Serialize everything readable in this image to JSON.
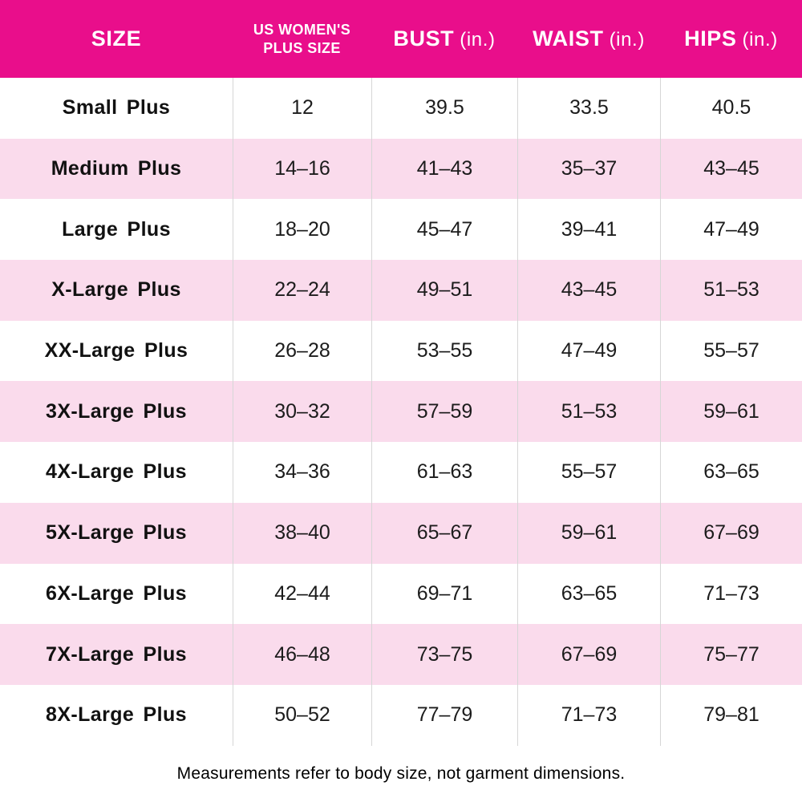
{
  "header": {
    "size": "SIZE",
    "plus_size_line1": "US WOMEN'S",
    "plus_size_line2": "PLUS SIZE",
    "bust": "BUST",
    "bust_unit": "(in.)",
    "waist": "WAIST",
    "waist_unit": "(in.)",
    "hips": "HIPS",
    "hips_unit": "(in.)"
  },
  "chart_data": {
    "type": "table",
    "title": "Women's plus size chart",
    "columns": [
      "SIZE",
      "US WOMEN'S PLUS SIZE",
      "BUST (in.)",
      "WAIST (in.)",
      "HIPS (in.)"
    ],
    "rows": [
      [
        "Small Plus",
        "12",
        "39.5",
        "33.5",
        "40.5"
      ],
      [
        "Medium Plus",
        "14–16",
        "41–43",
        "35–37",
        "43–45"
      ],
      [
        "Large Plus",
        "18–20",
        "45–47",
        "39–41",
        "47–49"
      ],
      [
        "X-Large Plus",
        "22–24",
        "49–51",
        "43–45",
        "51–53"
      ],
      [
        "XX-Large Plus",
        "26–28",
        "53–55",
        "47–49",
        "55–57"
      ],
      [
        "3X-Large Plus",
        "30–32",
        "57–59",
        "51–53",
        "59–61"
      ],
      [
        "4X-Large Plus",
        "34–36",
        "61–63",
        "55–57",
        "63–65"
      ],
      [
        "5X-Large Plus",
        "38–40",
        "65–67",
        "59–61",
        "67–69"
      ],
      [
        "6X-Large Plus",
        "42–44",
        "69–71",
        "63–65",
        "71–73"
      ],
      [
        "7X-Large Plus",
        "46–48",
        "73–75",
        "67–69",
        "75–77"
      ],
      [
        "8X-Large Plus",
        "50–52",
        "77–79",
        "71–73",
        "79–81"
      ]
    ]
  },
  "footer": {
    "note": "Measurements refer to body size, not garment dimensions."
  },
  "colors": {
    "header_bg": "#E90E8B",
    "stripe_pink": "#FADBEC",
    "header_text": "#FFFFFF",
    "body_text": "#111111"
  }
}
